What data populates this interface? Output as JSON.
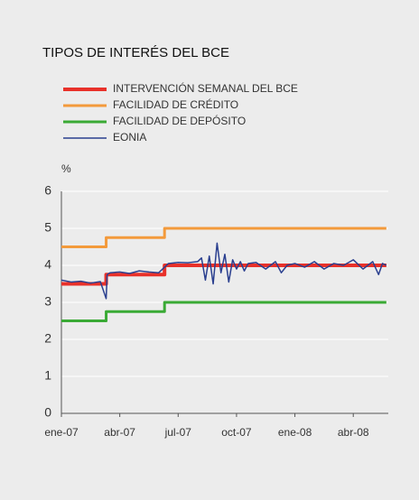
{
  "chart_data": {
    "type": "line",
    "title": "TIPOS DE INTERÉS DEL BCE",
    "y_label": "%",
    "xlim": [
      0,
      16.8
    ],
    "xticks": [
      {
        "value": 0,
        "label": "ene-07"
      },
      {
        "value": 3,
        "label": "abr-07"
      },
      {
        "value": 6,
        "label": "jul-07"
      },
      {
        "value": 9,
        "label": "oct-07"
      },
      {
        "value": 12,
        "label": "ene-08"
      },
      {
        "value": 15,
        "label": "abr-08"
      }
    ],
    "ylim": [
      0,
      6
    ],
    "yticks": [
      0,
      1,
      2,
      3,
      4,
      5,
      6
    ],
    "grid": true,
    "series": [
      {
        "name": "INTERVENCIÓN SEMANAL DEL BCE",
        "color": "#e8312a",
        "width": 4,
        "x": [
          0,
          2.3,
          2.3,
          5.3,
          5.3,
          16.7
        ],
        "values": [
          3.5,
          3.5,
          3.75,
          3.75,
          4,
          4
        ]
      },
      {
        "name": "FACILIDAD DE CRÉDITO",
        "color": "#f39a3b",
        "width": 3,
        "x": [
          0,
          2.3,
          2.3,
          5.3,
          5.3,
          16.7
        ],
        "values": [
          4.5,
          4.5,
          4.75,
          4.75,
          5,
          5
        ]
      },
      {
        "name": "FACILIDAD DE DEPÓSITO",
        "color": "#3aaa35",
        "width": 3,
        "x": [
          0,
          2.3,
          2.3,
          5.3,
          5.3,
          16.7
        ],
        "values": [
          2.5,
          2.5,
          2.75,
          2.75,
          3,
          3
        ]
      },
      {
        "name": "EONIA",
        "color": "#2a3f8f",
        "width": 1.5,
        "x": [
          0,
          0.5,
          1,
          1.5,
          2,
          2.3,
          2.35,
          2.5,
          3,
          3.5,
          4,
          4.5,
          5,
          5.3,
          5.5,
          6,
          6.5,
          7,
          7.2,
          7.4,
          7.6,
          7.8,
          8,
          8.2,
          8.4,
          8.6,
          8.8,
          9,
          9.2,
          9.4,
          9.6,
          10,
          10.5,
          11,
          11.3,
          11.6,
          12,
          12.5,
          13,
          13.5,
          14,
          14.5,
          15,
          15.5,
          16,
          16.3,
          16.5,
          16.7
        ],
        "values": [
          3.6,
          3.55,
          3.57,
          3.52,
          3.56,
          3.1,
          3.75,
          3.8,
          3.82,
          3.78,
          3.85,
          3.82,
          3.8,
          3.95,
          4.05,
          4.08,
          4.07,
          4.1,
          4.2,
          3.6,
          4.25,
          3.5,
          4.6,
          3.8,
          4.3,
          3.55,
          4.15,
          3.9,
          4.1,
          3.85,
          4.05,
          4.08,
          3.9,
          4.1,
          3.8,
          4.0,
          4.05,
          3.95,
          4.1,
          3.9,
          4.05,
          4.0,
          4.15,
          3.9,
          4.1,
          3.75,
          4.05,
          4.0
        ]
      }
    ]
  }
}
